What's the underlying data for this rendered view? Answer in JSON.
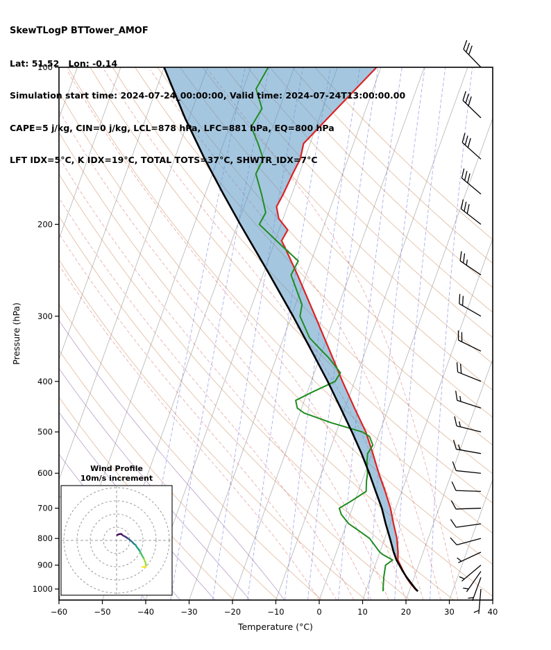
{
  "header": {
    "title": "SkewTLogP BTTower_AMOF",
    "location": "Lat: 51.52   Lon: -0.14",
    "times": "Simulation start time: 2024-07-24_00:00:00, Valid time: 2024-07-24T13:00:00.00",
    "indices1": "CAPE=5 j/kg, CIN=0 j/kg, LCL=878 hPa, LFC=881 hPa, EQ=800 hPa",
    "indices2": "LFT IDX=5°C, K IDX=19°C, TOTAL TOTS=37°C, SHWTR_IDX=7°C"
  },
  "inset": {
    "title": "Wind Profile",
    "subtitle": "10m/s increment"
  },
  "colors": {
    "temperature": "#dd2222",
    "parcel": "#000000",
    "dewpoint": "#1f8c1f",
    "cape_fill": "#5b97c4",
    "isotherm": "#9a9a9a",
    "dry_adiabat": "#c87f4b",
    "moist_adiabat": "#d65f5f",
    "moist_adiabat_cold": "#8a5fa8",
    "mixing_ratio": "#5560d6",
    "barb": "#000000",
    "hodo_ring": "#999999",
    "frame": "#000000"
  },
  "chart_data": {
    "type": "line",
    "subtype": "skewt-logp",
    "pressure_axis": {
      "label": "Pressure (hPa)",
      "ticks": [
        100,
        200,
        300,
        400,
        500,
        600,
        700,
        800,
        900,
        1000
      ],
      "range": [
        100,
        1050
      ],
      "scale": "log"
    },
    "temperature_axis": {
      "label": "Temperature (°C)",
      "ticks": [
        -60,
        -50,
        -40,
        -30,
        -20,
        -10,
        0,
        10,
        20,
        30,
        40
      ],
      "range": [
        -60,
        40
      ]
    },
    "series": [
      {
        "name": "temperature",
        "color_key": "temperature",
        "points": [
          [
            1010,
            22
          ],
          [
            1000,
            21.2
          ],
          [
            975,
            19.6
          ],
          [
            950,
            18.2
          ],
          [
            925,
            17
          ],
          [
            900,
            15.8
          ],
          [
            880,
            14.8
          ],
          [
            850,
            14.2
          ],
          [
            800,
            12.8
          ],
          [
            750,
            10.8
          ],
          [
            700,
            8.8
          ],
          [
            650,
            6.2
          ],
          [
            600,
            3.2
          ],
          [
            550,
            0.2
          ],
          [
            500,
            -3.2
          ],
          [
            450,
            -7.8
          ],
          [
            400,
            -12.8
          ],
          [
            350,
            -18.2
          ],
          [
            300,
            -24.5
          ],
          [
            250,
            -32
          ],
          [
            225,
            -36.5
          ],
          [
            215,
            -38.5
          ],
          [
            205,
            -38
          ],
          [
            195,
            -41
          ],
          [
            185,
            -42.5
          ],
          [
            175,
            -42
          ],
          [
            160,
            -41.5
          ],
          [
            150,
            -41
          ],
          [
            140,
            -41.5
          ],
          [
            125,
            -38
          ],
          [
            110,
            -34
          ],
          [
            100,
            -31
          ]
        ]
      },
      {
        "name": "parcel",
        "color_key": "parcel",
        "points": [
          [
            1010,
            22
          ],
          [
            1000,
            21.3
          ],
          [
            975,
            19.8
          ],
          [
            950,
            18.3
          ],
          [
            925,
            16.9
          ],
          [
            900,
            15.6
          ],
          [
            880,
            14.5
          ],
          [
            850,
            13.2
          ],
          [
            800,
            11.2
          ],
          [
            750,
            9
          ],
          [
            700,
            6.8
          ],
          [
            650,
            4
          ],
          [
            600,
            1
          ],
          [
            550,
            -2.4
          ],
          [
            500,
            -6.4
          ],
          [
            450,
            -11
          ],
          [
            400,
            -16.2
          ],
          [
            350,
            -22.4
          ],
          [
            300,
            -29.6
          ],
          [
            250,
            -38.4
          ],
          [
            200,
            -49.4
          ],
          [
            175,
            -55.8
          ],
          [
            150,
            -63
          ],
          [
            125,
            -71
          ],
          [
            100,
            -80
          ]
        ]
      },
      {
        "name": "dewpoint",
        "color_key": "dewpoint",
        "points": [
          [
            1010,
            14
          ],
          [
            1000,
            13.8
          ],
          [
            975,
            13.4
          ],
          [
            950,
            13
          ],
          [
            925,
            12.7
          ],
          [
            900,
            12.4
          ],
          [
            880,
            13.6
          ],
          [
            860,
            11
          ],
          [
            850,
            10
          ],
          [
            800,
            6.5
          ],
          [
            770,
            3
          ],
          [
            750,
            0.5
          ],
          [
            720,
            -2
          ],
          [
            700,
            -3
          ],
          [
            680,
            -1
          ],
          [
            650,
            1.8
          ],
          [
            620,
            1
          ],
          [
            600,
            0.6
          ],
          [
            570,
            -0.5
          ],
          [
            550,
            -1
          ],
          [
            530,
            -0.5
          ],
          [
            510,
            -2
          ],
          [
            500,
            -4
          ],
          [
            480,
            -12
          ],
          [
            460,
            -19
          ],
          [
            450,
            -21
          ],
          [
            435,
            -22
          ],
          [
            420,
            -19
          ],
          [
            400,
            -14.5
          ],
          [
            385,
            -14
          ],
          [
            360,
            -18
          ],
          [
            350,
            -20
          ],
          [
            330,
            -24
          ],
          [
            300,
            -28
          ],
          [
            285,
            -28.5
          ],
          [
            260,
            -32
          ],
          [
            250,
            -33.5
          ],
          [
            235,
            -33
          ],
          [
            220,
            -38
          ],
          [
            200,
            -45
          ],
          [
            190,
            -44.5
          ],
          [
            175,
            -47
          ],
          [
            160,
            -50
          ],
          [
            150,
            -49.5
          ],
          [
            140,
            -52
          ],
          [
            130,
            -55
          ],
          [
            120,
            -54
          ],
          [
            110,
            -57
          ],
          [
            100,
            -56
          ]
        ]
      }
    ],
    "cape_fill": {
      "between": [
        "parcel",
        "temperature"
      ],
      "pressure_range": [
        100,
        882
      ],
      "color_key": "cape_fill",
      "opacity": 0.55
    },
    "background": {
      "isotherms_c": {
        "start": -160,
        "end": 40,
        "step": 10
      },
      "dry_adiabats_theta_k": {
        "start": 250,
        "end": 440,
        "step": 10
      },
      "moist_adiabats_c": [
        0,
        4,
        8,
        12,
        16,
        20,
        24,
        28,
        32
      ],
      "moist_adiabats_cold_c": [
        -40,
        -32,
        -24,
        -16,
        -8
      ],
      "mixing_ratio_gkg": [
        0.1,
        0.2,
        0.5,
        1,
        2,
        3,
        5,
        8,
        12,
        20
      ]
    },
    "wind_barbs": [
      [
        1000,
        4,
        185
      ],
      [
        950,
        5,
        200
      ],
      [
        925,
        6,
        215
      ],
      [
        900,
        6,
        230
      ],
      [
        850,
        7,
        245
      ],
      [
        800,
        8,
        255
      ],
      [
        750,
        9,
        262
      ],
      [
        700,
        10,
        268
      ],
      [
        650,
        11,
        272
      ],
      [
        600,
        12,
        276
      ],
      [
        550,
        13,
        280
      ],
      [
        500,
        15,
        284
      ],
      [
        450,
        16,
        288
      ],
      [
        400,
        18,
        292
      ],
      [
        350,
        20,
        296
      ],
      [
        300,
        22,
        300
      ],
      [
        250,
        25,
        304
      ],
      [
        200,
        28,
        308
      ],
      [
        175,
        29,
        310
      ],
      [
        150,
        30,
        312
      ],
      [
        125,
        29,
        314
      ],
      [
        100,
        28,
        316
      ]
    ],
    "hodograph": {
      "rings_ms": [
        10,
        20,
        30,
        40
      ],
      "uses": "wind_barbs",
      "palette": [
        "#440154",
        "#46327e",
        "#365c8d",
        "#277f8e",
        "#1fa187",
        "#4ac16d",
        "#a0da39",
        "#fde725"
      ]
    }
  }
}
